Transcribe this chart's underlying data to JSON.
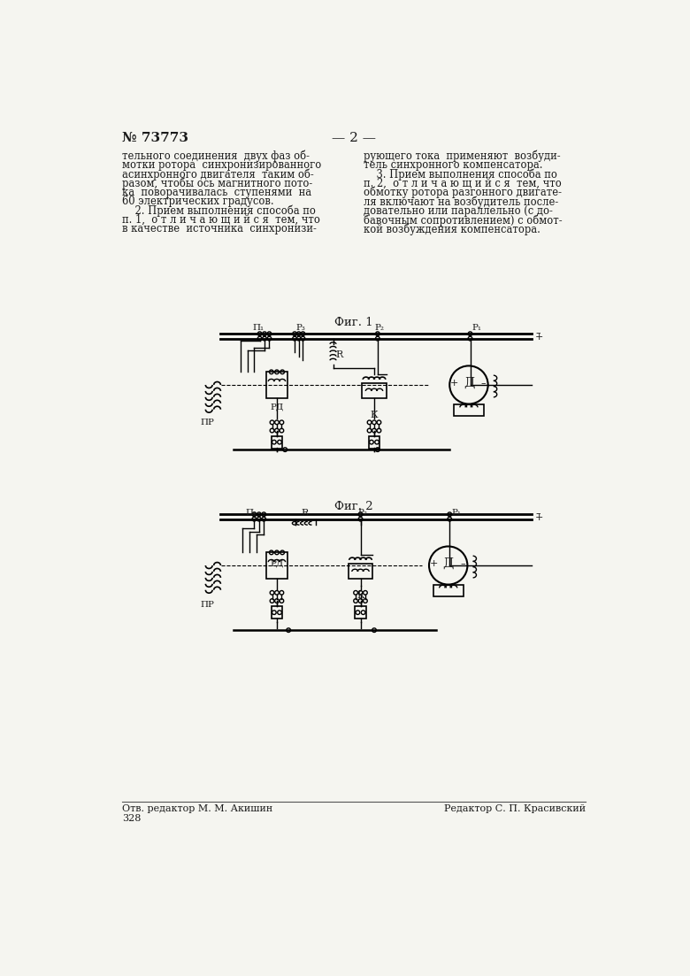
{
  "patent_number": "№ 73773",
  "page_number": "— 2 —",
  "background_color": "#f5f5f0",
  "text_color": "#1a1a1a",
  "fig1_label": "Фиг. 1",
  "fig2_label": "Фиг. 2",
  "footer_left": "Отв. редактор М. М. Акишин",
  "footer_right": "Редактор С. П. Красивский",
  "footer_number": "328",
  "left_col_lines": [
    "тельного соединения  двух фаз об-",
    "мотки ротора  синхронизированного",
    "асинхронного двигателя  таким об-",
    "разом, чтобы ось магнитного пото-",
    "ка  поворачивалась  ступенями  на",
    "60 электрических градусов.",
    "    2. Прием выполнения способа по",
    "п. 1,  о т л и ч а ю щ и й с я  тем, что",
    "в качестве  источника  синхронизи-"
  ],
  "right_col_lines": [
    "рующего тока  применяют  возбуди-",
    "тель синхронного компенсатора.",
    "    3. Прием выполнения способа по",
    "п. 2,  о т л и ч а ю щ и й с я  тем, что",
    "обмотку ротора разгонного двигате-",
    "ля включают на возбудитель после-",
    "довательно или параллельно (с до-",
    "бавочным сопротивлением) с обмот-",
    "кой возбуждения компенсатора."
  ]
}
